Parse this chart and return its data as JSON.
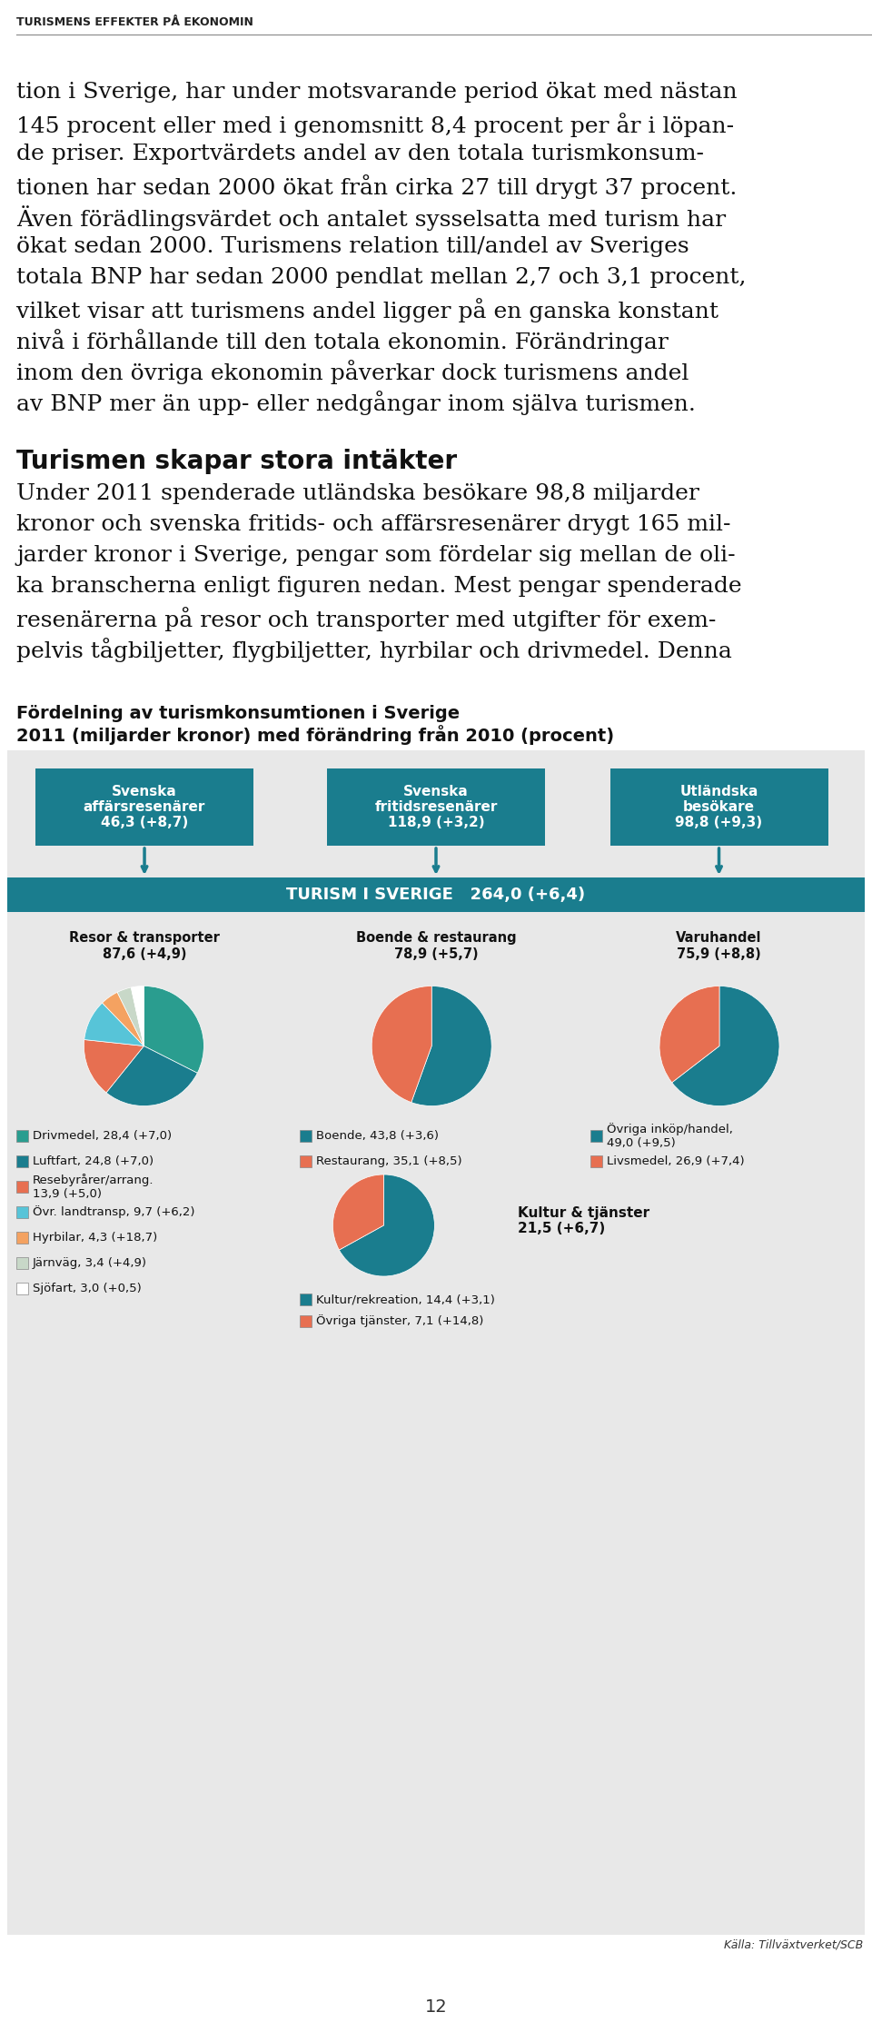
{
  "header": "TURISMENS EFFEKTER PÅ EKONOMIN",
  "body_text": [
    "tion i Sverige, har under motsvarande period ökat med nästan",
    "145 procent eller med i genomsnitt 8,4 procent per år i löpan-",
    "de priser. Exportvärdets andel av den totala turismkonsum-",
    "tionen har sedan 2000 ökat från cirka 27 till drygt 37 procent.",
    "Även förädlingsvärdet och antalet sysselsatta med turism har",
    "ökat sedan 2000. Turismens relation till/andel av Sveriges",
    "totala BNP har sedan 2000 pendlat mellan 2,7 och 3,1 procent,",
    "vilket visar att turismens andel ligger på en ganska konstant",
    "nivå i förhållande till den totala ekonomin. Förändringar",
    "inom den övriga ekonomin påverkar dock turismens andel",
    "av BNP mer än upp- eller nedgångar inom själva turismen."
  ],
  "section_title": "Turismen skapar stora intäkter",
  "section_body": [
    "Under 2011 spenderade utländska besökare 98,8 miljarder",
    "kronor och svenska fritids- och affärsresenärer drygt 165 mil-",
    "jarder kronor i Sverige, pengar som fördelar sig mellan de oli-",
    "ka branscherna enligt figuren nedan. Mest pengar spenderade",
    "resenärerna på resor och transporter med utgifter för exem-",
    "pelvis tågbiljetter, flygbiljetter, hyrbilar och drivmedel. Denna"
  ],
  "fig_title_line1": "Fördelning av turismkonsumtionen i Sverige",
  "fig_title_line2": "2011 (miljarder kronor) med förändring från 2010 (procent)",
  "box_color": "#1a7d8e",
  "box_text_color": "#ffffff",
  "boxes": [
    {
      "label": "Svenska\naffärsresenärer\n46,3 (+8,7)"
    },
    {
      "label": "Svenska\nfritidsresenärer\n118,9 (+3,2)"
    },
    {
      "label": "Utländska\nbesökare\n98,8 (+9,3)"
    }
  ],
  "middle_bar_text": "TURISM I SVERIGE   264,0 (+6,4)",
  "middle_bar_color": "#1a7d8e",
  "pie_labels": [
    "Resor & transporter\n87,6 (+4,9)",
    "Boende & restaurang\n78,9 (+5,7)",
    "Varuhandel\n75,9 (+8,8)"
  ],
  "pie1_values": [
    28.4,
    24.8,
    13.9,
    9.7,
    4.3,
    3.4,
    3.0
  ],
  "pie1_colors": [
    "#2a9d8f",
    "#1a7d8e",
    "#e76f51",
    "#57c4d8",
    "#f4a261",
    "#c8d8c8",
    "#ffffff"
  ],
  "pie2_values": [
    43.8,
    35.1
  ],
  "pie2_colors": [
    "#1a7d8e",
    "#e76f51"
  ],
  "pie3_values": [
    49.0,
    26.9
  ],
  "pie3_colors": [
    "#1a7d8e",
    "#e76f51"
  ],
  "pie4_values": [
    14.4,
    7.1
  ],
  "pie4_colors": [
    "#1a7d8e",
    "#e76f51"
  ],
  "legend1": [
    [
      "#2a9d8f",
      "Drivmedel, 28,4 (+7,0)"
    ],
    [
      "#1a7d8e",
      "Luftfart, 24,8 (+7,0)"
    ],
    [
      "#e76f51",
      "Resebyrårer/arrang.\n13,9 (+5,0)"
    ],
    [
      "#57c4d8",
      "Övr. landtransp, 9,7 (+6,2)"
    ],
    [
      "#f4a261",
      "Hyrbilar, 4,3 (+18,7)"
    ],
    [
      "#c8d8c8",
      "Järnväg, 3,4 (+4,9)"
    ],
    [
      "#ffffff",
      "Sjöfart, 3,0 (+0,5)"
    ]
  ],
  "legend2": [
    [
      "#1a7d8e",
      "Boende, 43,8 (+3,6)"
    ],
    [
      "#e76f51",
      "Restaurang, 35,1 (+8,5)"
    ]
  ],
  "legend3": [
    [
      "#1a7d8e",
      "Övriga inköp/handel,\n49,0 (+9,5)"
    ],
    [
      "#e76f51",
      "Livsmedel, 26,9 (+7,4)"
    ]
  ],
  "legend4": [
    [
      "#1a7d8e",
      "Kultur/rekreation, 14,4 (+3,1)"
    ],
    [
      "#e76f51",
      "Övriga tjänster, 7,1 (+14,8)"
    ]
  ],
  "kultur_label": "Kultur & tjänster\n21,5 (+6,7)",
  "source": "Källa: Tillväxtverket/SCB",
  "page_number": "12",
  "bg_color": "#e8e8e8",
  "white": "#ffffff"
}
